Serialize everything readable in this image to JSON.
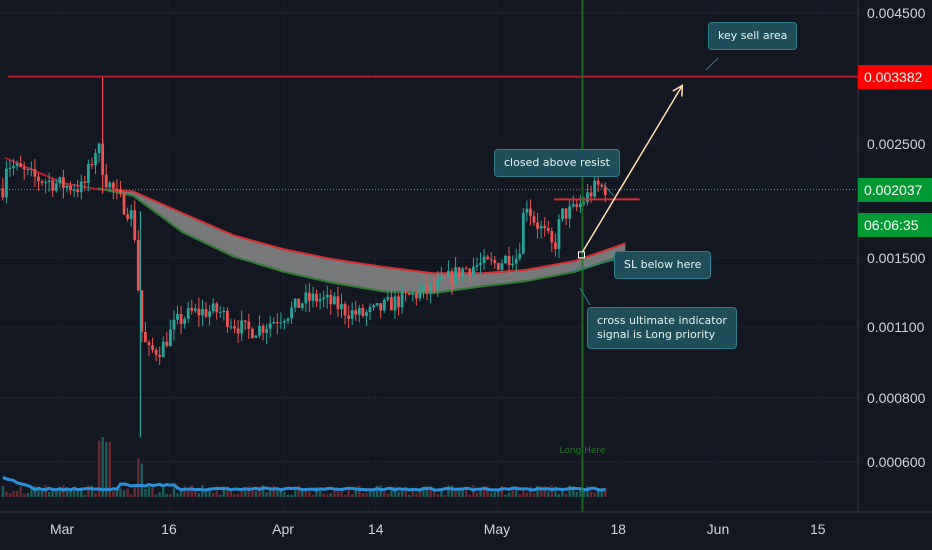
{
  "chart_data": {
    "type": "candlestick",
    "price_axis": {
      "scale": "log",
      "ticks": [
        "0.004500",
        "0.002500",
        "0.001500",
        "0.001100",
        "0.000800",
        "0.000600"
      ],
      "tick_values": [
        0.0045,
        0.0025,
        0.0015,
        0.0011,
        0.0008,
        0.0006
      ]
    },
    "time_axis": {
      "ticks": [
        "Mar",
        "16",
        "Apr",
        "14",
        "May",
        "18",
        "Jun",
        "15"
      ],
      "tick_dates": [
        "2019-03-01",
        "2019-03-16",
        "2019-04-01",
        "2019-04-14",
        "2019-05-01",
        "2019-05-18",
        "2019-06-01",
        "2019-06-15"
      ]
    },
    "price_labels": {
      "resistance": {
        "text": "0.003382",
        "value": 0.003382,
        "color": "#ff0000"
      },
      "last_price": {
        "text": "0.002037",
        "value": 0.002037,
        "color": "#009933"
      },
      "countdown": {
        "text": "06:06:35",
        "color": "#009933"
      }
    },
    "key_sell_line": {
      "value": 0.003382,
      "color": "#b71c2c"
    },
    "resist_segment": {
      "from": "2019-05-09",
      "to": "2019-05-21",
      "value": 0.00195,
      "color": "#d32f2f"
    },
    "signal_line": {
      "date": "2019-05-13",
      "label": "Long Here",
      "color": "#1b7d1b"
    },
    "arrow": {
      "from_date": "2019-05-13",
      "from_value": 0.00154,
      "to_date": "2019-05-27",
      "to_value": 0.00325,
      "color": "#ffe0b2"
    },
    "ultimate_band": {
      "upper": [
        [
          "2019-03-06",
          0.00204
        ],
        [
          "2019-03-11",
          0.00202
        ],
        [
          "2019-03-18",
          0.00183
        ],
        [
          "2019-03-25",
          0.00166
        ],
        [
          "2019-04-01",
          0.00156
        ],
        [
          "2019-04-08",
          0.00149
        ],
        [
          "2019-04-15",
          0.00144
        ],
        [
          "2019-04-22",
          0.0014
        ],
        [
          "2019-04-29",
          0.0014
        ],
        [
          "2019-05-05",
          0.00142
        ],
        [
          "2019-05-12",
          0.00148
        ],
        [
          "2019-05-19",
          0.0016
        ]
      ],
      "lower": [
        [
          "2019-03-06",
          0.00205
        ],
        [
          "2019-03-11",
          0.00198
        ],
        [
          "2019-03-18",
          0.00168
        ],
        [
          "2019-03-25",
          0.00151
        ],
        [
          "2019-04-01",
          0.00141
        ],
        [
          "2019-04-08",
          0.00134
        ],
        [
          "2019-04-15",
          0.00129
        ],
        [
          "2019-04-22",
          0.00128
        ],
        [
          "2019-04-29",
          0.00132
        ],
        [
          "2019-05-05",
          0.00135
        ],
        [
          "2019-05-12",
          0.00141
        ],
        [
          "2019-05-19",
          0.00152
        ]
      ]
    },
    "callouts": {
      "key_sell": "key sell area",
      "resist": "closed above resist",
      "sl": "SL below here",
      "cross_line1": "cross ultimate indicator",
      "cross_line2": "signal is Long priority"
    },
    "colors": {
      "up": "#26a69a",
      "down": "#ef5350",
      "volume_line": "#2a8fd6",
      "background": "#131722"
    }
  }
}
